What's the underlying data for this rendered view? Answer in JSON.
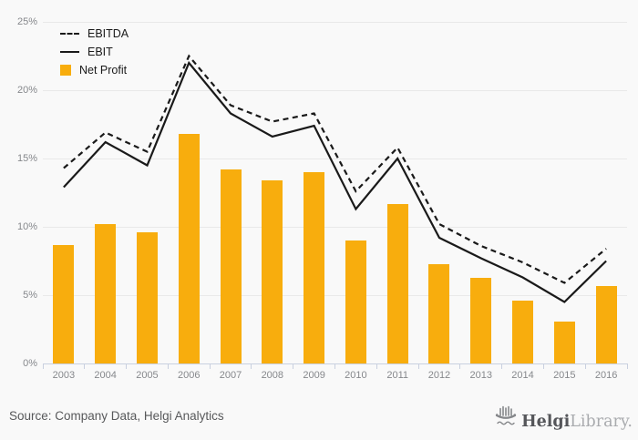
{
  "chart_data": {
    "type": "bar",
    "subtype": "bar-line-combo",
    "title": "",
    "xlabel": "",
    "ylabel": "",
    "ylim": [
      0,
      25
    ],
    "grid": true,
    "legend_position": "top-left",
    "yticks": [
      "0%",
      "5%",
      "10%",
      "15%",
      "20%",
      "25%"
    ],
    "categories": [
      "2003",
      "2004",
      "2005",
      "2006",
      "2007",
      "2008",
      "2009",
      "2010",
      "2011",
      "2012",
      "2013",
      "2014",
      "2015",
      "2016"
    ],
    "series": [
      {
        "name": "EBITDA",
        "type": "line",
        "line_style": "dashed",
        "color": "#1a1a1a",
        "values": [
          14.3,
          16.9,
          15.5,
          22.5,
          18.9,
          17.7,
          18.3,
          12.6,
          15.8,
          10.2,
          8.6,
          7.4,
          5.9,
          8.4
        ]
      },
      {
        "name": "EBIT",
        "type": "line",
        "line_style": "solid",
        "color": "#1a1a1a",
        "values": [
          12.9,
          16.2,
          14.5,
          22.0,
          18.3,
          16.6,
          17.4,
          11.3,
          15.0,
          9.2,
          7.7,
          6.3,
          4.5,
          7.5
        ]
      },
      {
        "name": "Net Profit",
        "type": "bar",
        "color": "#f8ad0d",
        "values": [
          8.7,
          10.2,
          9.6,
          16.8,
          14.2,
          13.4,
          14.0,
          9.0,
          11.7,
          7.3,
          6.3,
          4.6,
          3.1,
          5.7
        ]
      }
    ],
    "colors": {
      "axis": "#c9d0df",
      "grid": "#e9e9e9",
      "tick_text": "#86888c",
      "background": "#f9f9f9"
    }
  },
  "footer": {
    "source": "Source: Company Data, Helgi Analytics",
    "logo": {
      "brand_bold": "Helgi",
      "brand_light": "Library."
    }
  }
}
